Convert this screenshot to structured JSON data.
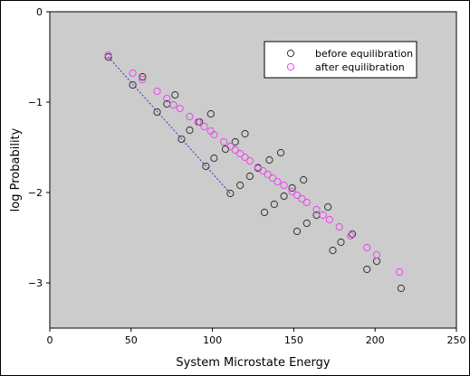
{
  "chart_data": {
    "type": "scatter",
    "title": "",
    "xlabel": "System Microstate Energy",
    "ylabel": "log Probability",
    "xlim": [
      0,
      250
    ],
    "ylim": [
      -3.5,
      0
    ],
    "xticks": [
      0,
      50,
      100,
      150,
      200,
      250
    ],
    "yticks": [
      0,
      -1,
      -2,
      -3
    ],
    "ytick_labels": [
      "0",
      "−1",
      "−2",
      "−3"
    ],
    "grid": false,
    "legend_position": "top-right",
    "colors": {
      "plot_background": "#cccccc",
      "before": "#333333",
      "after": "#ee44ee",
      "fit_line": "#3333cc"
    },
    "series": [
      {
        "name": "before equilibration",
        "marker": "open-circle",
        "points": [
          [
            36,
            -0.5
          ],
          [
            51,
            -0.81
          ],
          [
            57,
            -0.72
          ],
          [
            66,
            -1.11
          ],
          [
            72,
            -1.02
          ],
          [
            77,
            -0.92
          ],
          [
            81,
            -1.41
          ],
          [
            86,
            -1.31
          ],
          [
            92,
            -1.22
          ],
          [
            96,
            -1.71
          ],
          [
            99,
            -1.13
          ],
          [
            101,
            -1.62
          ],
          [
            108,
            -1.52
          ],
          [
            111,
            -2.01
          ],
          [
            114,
            -1.44
          ],
          [
            117,
            -1.92
          ],
          [
            120,
            -1.35
          ],
          [
            123,
            -1.82
          ],
          [
            128,
            -1.73
          ],
          [
            132,
            -2.22
          ],
          [
            135,
            -1.64
          ],
          [
            138,
            -2.13
          ],
          [
            142,
            -1.56
          ],
          [
            144,
            -2.04
          ],
          [
            149,
            -1.95
          ],
          [
            152,
            -2.43
          ],
          [
            156,
            -1.86
          ],
          [
            158,
            -2.34
          ],
          [
            164,
            -2.25
          ],
          [
            171,
            -2.16
          ],
          [
            174,
            -2.64
          ],
          [
            179,
            -2.55
          ],
          [
            186,
            -2.46
          ],
          [
            195,
            -2.85
          ],
          [
            201,
            -2.76
          ],
          [
            216,
            -3.06
          ]
        ]
      },
      {
        "name": "after equilibration",
        "marker": "open-circle",
        "points": [
          [
            36,
            -0.48
          ],
          [
            51,
            -0.68
          ],
          [
            57,
            -0.75
          ],
          [
            66,
            -0.88
          ],
          [
            72,
            -0.96
          ],
          [
            76,
            -1.03
          ],
          [
            80,
            -1.07
          ],
          [
            86,
            -1.16
          ],
          [
            91,
            -1.22
          ],
          [
            95,
            -1.27
          ],
          [
            99,
            -1.32
          ],
          [
            101,
            -1.36
          ],
          [
            107,
            -1.44
          ],
          [
            111,
            -1.49
          ],
          [
            114,
            -1.53
          ],
          [
            117,
            -1.57
          ],
          [
            120,
            -1.61
          ],
          [
            123,
            -1.65
          ],
          [
            128,
            -1.72
          ],
          [
            131,
            -1.76
          ],
          [
            134,
            -1.8
          ],
          [
            137,
            -1.84
          ],
          [
            140,
            -1.88
          ],
          [
            144,
            -1.92
          ],
          [
            149,
            -1.99
          ],
          [
            152,
            -2.03
          ],
          [
            155,
            -2.07
          ],
          [
            158,
            -2.11
          ],
          [
            164,
            -2.19
          ],
          [
            168,
            -2.25
          ],
          [
            172,
            -2.3
          ],
          [
            178,
            -2.38
          ],
          [
            185,
            -2.48
          ],
          [
            195,
            -2.61
          ],
          [
            201,
            -2.69
          ],
          [
            215,
            -2.88
          ]
        ]
      }
    ],
    "fit_line": [
      [
        36,
        -0.5
      ],
      [
        111,
        -2.01
      ]
    ]
  }
}
